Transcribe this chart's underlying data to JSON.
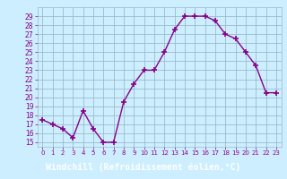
{
  "x": [
    0,
    1,
    2,
    3,
    4,
    5,
    6,
    7,
    8,
    9,
    10,
    11,
    12,
    13,
    14,
    15,
    16,
    17,
    18,
    19,
    20,
    21,
    22,
    23
  ],
  "y": [
    17.5,
    17.0,
    16.5,
    15.5,
    18.5,
    16.5,
    15.0,
    15.0,
    19.5,
    21.5,
    23.0,
    23.0,
    25.0,
    27.5,
    29.0,
    29.0,
    29.0,
    28.5,
    27.0,
    26.5,
    25.0,
    23.5,
    20.5,
    20.5
  ],
  "line_color": "#880088",
  "marker": "+",
  "marker_size": 4,
  "bg_color": "#cceeff",
  "grid_color": "#99bbcc",
  "xlabel": "Windchill (Refroidissement éolien,°C)",
  "xlabel_color": "#ffffff",
  "xlabel_bg": "#880088",
  "ylabel_ticks": [
    15,
    16,
    17,
    18,
    19,
    20,
    21,
    22,
    23,
    24,
    25,
    26,
    27,
    28,
    29
  ],
  "xlim": [
    -0.5,
    23.5
  ],
  "ylim": [
    14.5,
    30.0
  ],
  "xtick_labels": [
    "0",
    "1",
    "2",
    "3",
    "4",
    "5",
    "6",
    "7",
    "8",
    "9",
    "10",
    "11",
    "12",
    "13",
    "14",
    "15",
    "16",
    "17",
    "18",
    "19",
    "20",
    "21",
    "22",
    "23"
  ]
}
